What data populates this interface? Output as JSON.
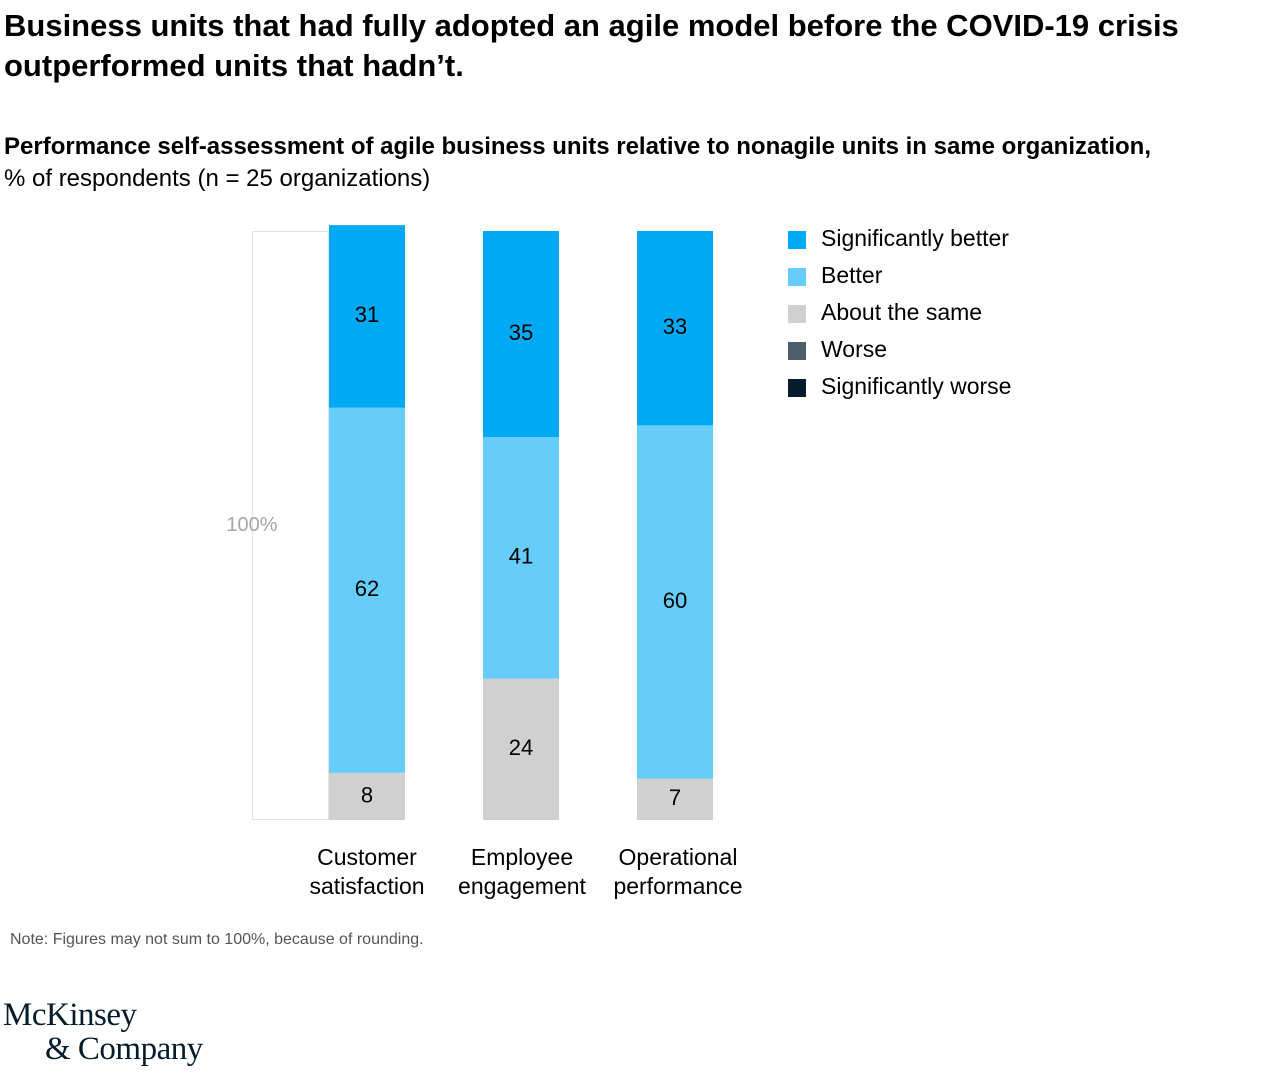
{
  "title": "Business units that had fully adopted an agile model before the COVID-19 crisis outperformed units that hadn’t.",
  "subtitle_bold": "Performance self-assessment of agile business units relative to nonagile units in same organization,",
  "subtitle_regular": "% of respondents (n = 25 organizations)",
  "note": "Note: Figures may not sum to 100%, because of rounding.",
  "logo": {
    "line1": "McKinsey",
    "line2": "& Company"
  },
  "chart_data": {
    "type": "bar",
    "stacked": true,
    "reference_label": "100%",
    "categories": [
      [
        "Customer",
        "satisfaction"
      ],
      [
        "Employee",
        "engagement"
      ],
      [
        "Operational",
        "performance"
      ]
    ],
    "series": [
      {
        "name": "Significantly better",
        "color": "#00a9f4",
        "values": [
          31,
          35,
          33
        ]
      },
      {
        "name": "Better",
        "color": "#66ccfa",
        "values": [
          62,
          41,
          60
        ]
      },
      {
        "name": "About the same",
        "color": "#d0d0d0",
        "values": [
          8,
          24,
          7
        ]
      },
      {
        "name": "Worse",
        "color": "#4d5e6d",
        "values": [
          0,
          0,
          0
        ]
      },
      {
        "name": "Significantly worse",
        "color": "#051c2c",
        "values": [
          0,
          0,
          0
        ]
      }
    ],
    "ylim": [
      0,
      100
    ],
    "legend_position": "top-right"
  }
}
